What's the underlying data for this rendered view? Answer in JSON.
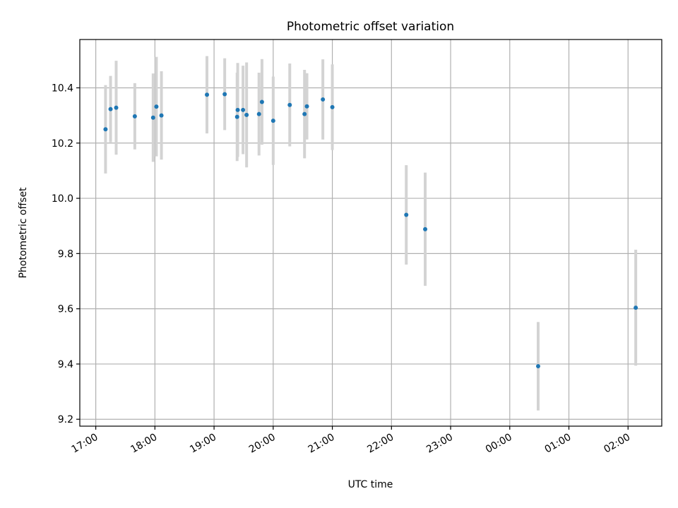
{
  "chart_data": {
    "type": "scatter",
    "title": "Photometric offset variation",
    "xlabel": "UTC time",
    "ylabel": "Photometric offset",
    "x_unit": "hours since 17:00 UTC",
    "xlim": [
      -0.27,
      9.57
    ],
    "ylim": [
      9.175,
      10.575
    ],
    "x_ticks": [
      {
        "t": 0,
        "label": "17:00"
      },
      {
        "t": 1,
        "label": "18:00"
      },
      {
        "t": 2,
        "label": "19:00"
      },
      {
        "t": 3,
        "label": "20:00"
      },
      {
        "t": 4,
        "label": "21:00"
      },
      {
        "t": 5,
        "label": "22:00"
      },
      {
        "t": 6,
        "label": "23:00"
      },
      {
        "t": 7,
        "label": "00:00"
      },
      {
        "t": 8,
        "label": "01:00"
      },
      {
        "t": 9,
        "label": "02:00"
      }
    ],
    "y_ticks": [
      {
        "v": 9.2,
        "label": "9.2"
      },
      {
        "v": 9.4,
        "label": "9.4"
      },
      {
        "v": 9.6,
        "label": "9.6"
      },
      {
        "v": 9.8,
        "label": "9.8"
      },
      {
        "v": 10.0,
        "label": "10.0"
      },
      {
        "v": 10.2,
        "label": "10.2"
      },
      {
        "v": 10.4,
        "label": "10.4"
      }
    ],
    "grid": true,
    "marker_color": "#1f77b4",
    "errorbar_color": "#d3d3d3",
    "points": [
      {
        "x": 0.165,
        "y": 10.25,
        "err": 0.16
      },
      {
        "x": 0.25,
        "y": 10.323,
        "err": 0.12
      },
      {
        "x": 0.345,
        "y": 10.328,
        "err": 0.17
      },
      {
        "x": 0.66,
        "y": 10.297,
        "err": 0.12
      },
      {
        "x": 0.97,
        "y": 10.292,
        "err": 0.16
      },
      {
        "x": 1.025,
        "y": 10.332,
        "err": 0.18
      },
      {
        "x": 1.11,
        "y": 10.3,
        "err": 0.16
      },
      {
        "x": 1.88,
        "y": 10.375,
        "err": 0.14
      },
      {
        "x": 2.18,
        "y": 10.377,
        "err": 0.13
      },
      {
        "x": 2.39,
        "y": 10.295,
        "err": 0.16
      },
      {
        "x": 2.4,
        "y": 10.32,
        "err": 0.17
      },
      {
        "x": 2.49,
        "y": 10.32,
        "err": 0.16
      },
      {
        "x": 2.55,
        "y": 10.302,
        "err": 0.19
      },
      {
        "x": 2.76,
        "y": 10.305,
        "err": 0.15
      },
      {
        "x": 2.81,
        "y": 10.349,
        "err": 0.155
      },
      {
        "x": 3.0,
        "y": 10.281,
        "err": 0.16
      },
      {
        "x": 3.28,
        "y": 10.338,
        "err": 0.15
      },
      {
        "x": 3.53,
        "y": 10.305,
        "err": 0.16
      },
      {
        "x": 3.57,
        "y": 10.333,
        "err": 0.12
      },
      {
        "x": 3.84,
        "y": 10.358,
        "err": 0.145
      },
      {
        "x": 4.0,
        "y": 10.33,
        "err": 0.155
      },
      {
        "x": 5.25,
        "y": 9.94,
        "err": 0.18
      },
      {
        "x": 5.57,
        "y": 9.888,
        "err": 0.205
      },
      {
        "x": 7.48,
        "y": 9.392,
        "err": 0.16
      },
      {
        "x": 9.13,
        "y": 9.604,
        "err": 0.21
      }
    ]
  }
}
